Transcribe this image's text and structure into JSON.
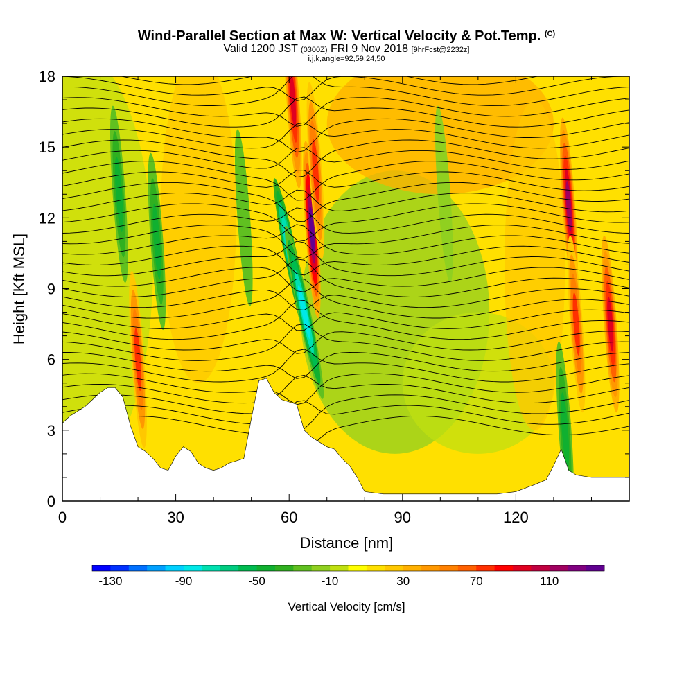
{
  "chart_data": {
    "type": "heatmap",
    "title": "Wind-Parallel Section at Max W: Vertical Velocity & Pot.Temp.",
    "title_mark": "(C)",
    "subtitle": {
      "valid": "Valid 1200 JST",
      "utc": "(0300Z)",
      "date": "FRI 9 Nov 2018",
      "forecast": "[9hrFcst@2232z]"
    },
    "indices": "i,j,k,angle=92,59,24,50",
    "xlabel": "Distance [nm]",
    "ylabel": "Height [Kft MSL]",
    "xlim": [
      0,
      150
    ],
    "ylim": [
      0,
      18
    ],
    "x_ticks": [
      "0",
      "30",
      "60",
      "90",
      "120"
    ],
    "y_ticks": [
      "0",
      "3",
      "6",
      "9",
      "12",
      "15",
      "18"
    ],
    "colorbar": {
      "label": "Vertical Velocity [cm/s]",
      "ticks": [
        "-130",
        "-90",
        "-50",
        "-10",
        "30",
        "70",
        "110"
      ],
      "colors": [
        "#0000ff",
        "#0030ff",
        "#0070ff",
        "#00a0ff",
        "#00d0ff",
        "#00e8e8",
        "#00e0b0",
        "#00cc80",
        "#00bb50",
        "#10b030",
        "#30b020",
        "#60c020",
        "#90d020",
        "#c0e010",
        "#ffff00",
        "#ffe000",
        "#ffc800",
        "#ffb000",
        "#ff9800",
        "#ff8000",
        "#ff6000",
        "#ff3000",
        "#ff0000",
        "#e00020",
        "#c00040",
        "#a00060",
        "#800080",
        "#600090"
      ]
    },
    "terrain_kft": {
      "x": [
        0,
        2,
        4,
        6,
        8,
        10,
        12,
        14,
        16,
        18,
        20,
        22,
        24,
        26,
        28,
        30,
        32,
        34,
        36,
        38,
        40,
        42,
        44,
        46,
        48,
        50,
        52,
        54,
        56,
        58,
        60,
        62,
        64,
        66,
        68,
        70,
        72,
        74,
        76,
        78,
        80,
        85,
        90,
        95,
        100,
        105,
        110,
        115,
        120,
        125,
        128,
        130,
        132,
        134,
        136,
        140,
        145,
        150
      ],
      "y": [
        3.3,
        3.6,
        3.8,
        4.0,
        4.3,
        4.6,
        4.8,
        4.8,
        4.4,
        3.2,
        2.3,
        2.1,
        1.8,
        1.4,
        1.3,
        1.9,
        2.3,
        2.1,
        1.6,
        1.4,
        1.3,
        1.4,
        1.6,
        1.7,
        1.8,
        3.5,
        5.1,
        5.2,
        4.6,
        4.3,
        4.2,
        4.1,
        3.0,
        2.7,
        2.5,
        2.3,
        2.2,
        1.8,
        1.5,
        1.0,
        0.4,
        0.3,
        0.3,
        0.3,
        0.3,
        0.3,
        0.3,
        0.3,
        0.4,
        0.7,
        0.9,
        1.5,
        2.2,
        1.3,
        1.1,
        1.0,
        1.0,
        1.0
      ]
    },
    "vertical_velocity_features": [
      {
        "x": 20,
        "z": 6.0,
        "w": 70
      },
      {
        "x": 15,
        "z": 13.0,
        "w": -50
      },
      {
        "x": 25,
        "z": 11.0,
        "w": -50
      },
      {
        "x": 61,
        "z": 10.0,
        "w": -110
      },
      {
        "x": 64,
        "z": 8.0,
        "w": -90
      },
      {
        "x": 61,
        "z": 17.0,
        "w": 90
      },
      {
        "x": 66,
        "z": 11.5,
        "w": 130
      },
      {
        "x": 67,
        "z": 14.0,
        "w": 70
      },
      {
        "x": 48,
        "z": 12.0,
        "w": -30
      },
      {
        "x": 101,
        "z": 13.0,
        "w": -20
      },
      {
        "x": 134,
        "z": 12.5,
        "w": 110
      },
      {
        "x": 136,
        "z": 7.5,
        "w": 70
      },
      {
        "x": 145,
        "z": 7.5,
        "w": 90
      },
      {
        "x": 133,
        "z": 3.0,
        "w": -50
      }
    ]
  }
}
